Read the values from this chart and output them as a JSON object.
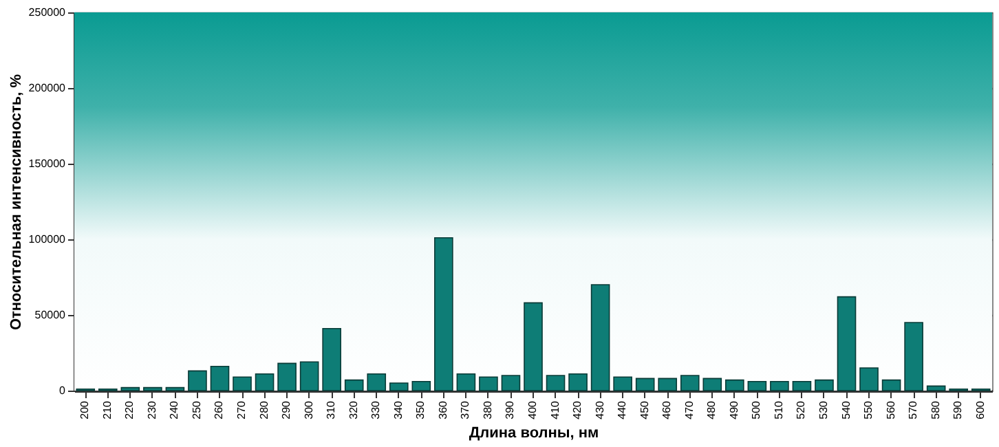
{
  "chart_data": {
    "type": "bar",
    "xlabel": "Длина волны, нм",
    "ylabel": "Относительная интенсивность, %",
    "categories": [
      "200",
      "210",
      "220",
      "230",
      "240",
      "250",
      "260",
      "270",
      "280",
      "290",
      "300",
      "310",
      "320",
      "330",
      "340",
      "350",
      "360",
      "370",
      "380",
      "390",
      "400",
      "410",
      "420",
      "430",
      "440",
      "450",
      "460",
      "470",
      "480",
      "490",
      "500",
      "510",
      "520",
      "530",
      "540",
      "550",
      "560",
      "570",
      "580",
      "590",
      "600"
    ],
    "series": [
      {
        "color": "#0e7d76",
        "values": [
          1000,
          1000,
          2000,
          2000,
          2000,
          13000,
          16000,
          9000,
          11000,
          18000,
          19000,
          41000,
          7000,
          11000,
          5000,
          6000,
          101000,
          11000,
          9000,
          10000,
          58000,
          10000,
          11000,
          70000,
          9000,
          8000,
          8000,
          10000,
          8000,
          7000,
          6000,
          6000,
          6000,
          7000,
          62000,
          15000,
          7000,
          45000,
          3000,
          1000,
          1000
        ]
      }
    ],
    "ylim": [
      0,
      250000
    ],
    "yticks": [
      0,
      50000,
      100000,
      150000,
      200000,
      250000
    ],
    "grid": "y"
  }
}
